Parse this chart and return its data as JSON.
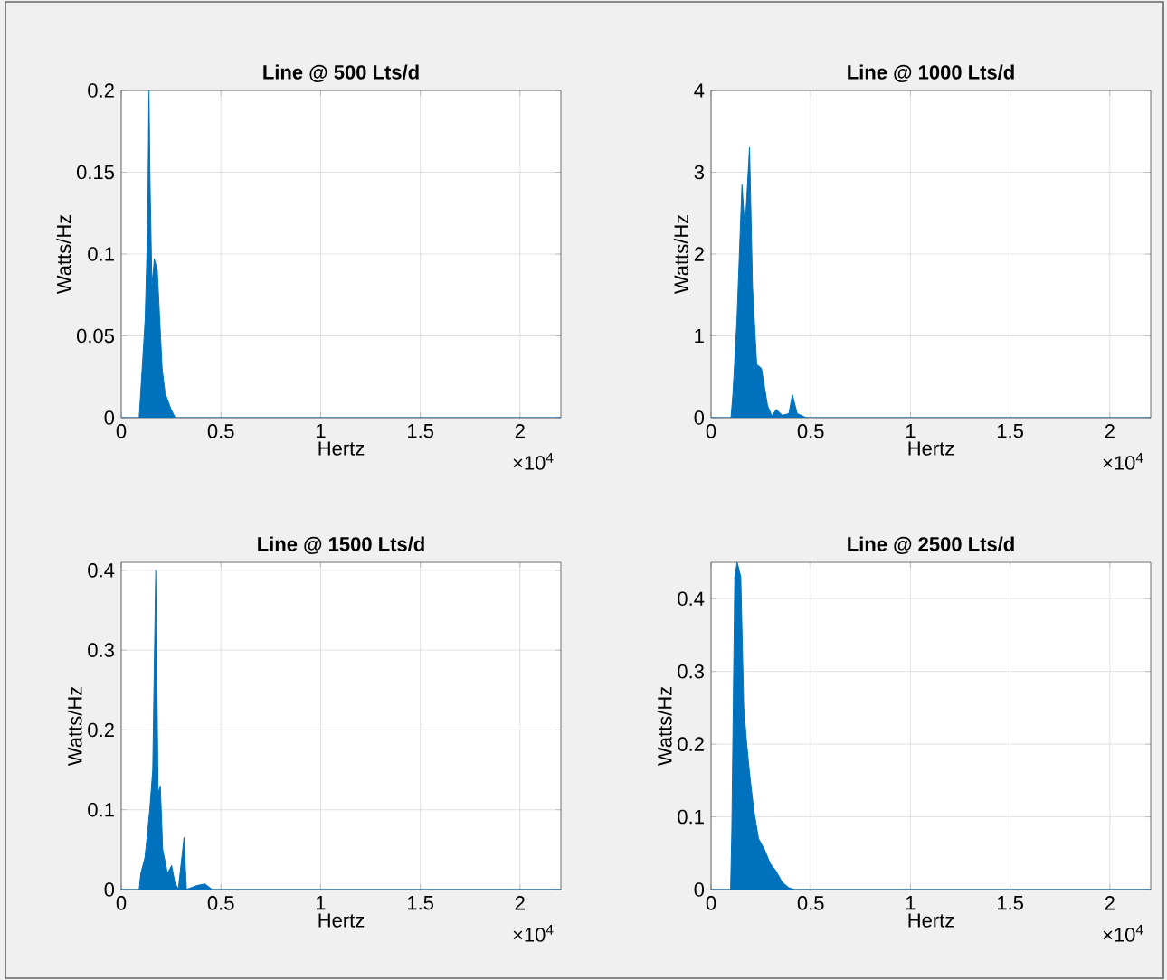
{
  "chart_data": [
    {
      "type": "area",
      "title": "Line @ 500 Lts/d",
      "xlabel": "Hertz",
      "ylabel": "Watts/Hz",
      "color": "#0072bd",
      "grid": true,
      "x": [
        0,
        0.09,
        0.105,
        0.12,
        0.133,
        0.139,
        0.145,
        0.154,
        0.166,
        0.181,
        0.193,
        0.205,
        0.22,
        0.25,
        0.271,
        2.205
      ],
      "values": [
        0,
        0,
        0.03,
        0.06,
        0.12,
        0.2,
        0.14,
        0.08,
        0.097,
        0.09,
        0.06,
        0.03,
        0.015,
        0.005,
        0,
        0
      ],
      "xlim": [
        0,
        2.205
      ],
      "ylim": [
        0,
        0.2
      ],
      "xticks": [
        0,
        0.5,
        1,
        1.5,
        2
      ],
      "yticks": [
        0,
        0.05,
        0.1,
        0.15,
        0.2
      ],
      "annotations": [
        "×10$^{4}$"
      ]
    },
    {
      "type": "area",
      "title": "Line @ 1000 Lts/d",
      "xlabel": "Hertz",
      "ylabel": "Watts/Hz",
      "color": "#0072bd",
      "grid": true,
      "x": [
        0,
        0.1,
        0.11,
        0.13,
        0.155,
        0.17,
        0.193,
        0.208,
        0.229,
        0.253,
        0.283,
        0.305,
        0.327,
        0.357,
        0.39,
        0.408,
        0.432,
        0.476,
        2.205
      ],
      "values": [
        0,
        0,
        0.3,
        1.2,
        2.85,
        2.3,
        3.3,
        1.6,
        0.65,
        0.6,
        0.15,
        0.02,
        0.1,
        0.03,
        0.05,
        0.28,
        0.05,
        0,
        0
      ],
      "xlim": [
        0,
        2.205
      ],
      "ylim": [
        0,
        4
      ],
      "xticks": [
        0,
        0.5,
        1,
        1.5,
        2
      ],
      "yticks": [
        0,
        1,
        2,
        3,
        4
      ],
      "annotations": [
        "×10$^{4}$"
      ]
    },
    {
      "type": "area",
      "title": "Line @ 1500 Lts/d",
      "xlabel": "Hertz",
      "ylabel": "Watts/Hz",
      "color": "#0072bd",
      "grid": true,
      "x": [
        0,
        0.09,
        0.098,
        0.119,
        0.143,
        0.158,
        0.173,
        0.185,
        0.196,
        0.208,
        0.232,
        0.253,
        0.268,
        0.286,
        0.315,
        0.327,
        0.381,
        0.42,
        0.455,
        2.205
      ],
      "values": [
        0,
        0,
        0.02,
        0.04,
        0.1,
        0.15,
        0.4,
        0.12,
        0.13,
        0.05,
        0.02,
        0.03,
        0.01,
        0,
        0.065,
        0,
        0.005,
        0.007,
        0,
        0
      ],
      "xlim": [
        0,
        2.205
      ],
      "ylim": [
        0,
        0.41
      ],
      "xticks": [
        0,
        0.5,
        1,
        1.5,
        2
      ],
      "yticks": [
        0,
        0.1,
        0.2,
        0.3,
        0.4
      ],
      "annotations": [
        "×10$^{4}$"
      ]
    },
    {
      "type": "area",
      "title": "Line @ 2500 Lts/d",
      "xlabel": "Hertz",
      "ylabel": "Watts/Hz",
      "color": "#0072bd",
      "grid": true,
      "x": [
        0,
        0.098,
        0.104,
        0.119,
        0.131,
        0.149,
        0.164,
        0.179,
        0.193,
        0.214,
        0.238,
        0.268,
        0.298,
        0.327,
        0.357,
        0.387,
        0.417,
        2.205
      ],
      "values": [
        0,
        0,
        0.08,
        0.43,
        0.45,
        0.43,
        0.25,
        0.2,
        0.16,
        0.11,
        0.07,
        0.055,
        0.035,
        0.025,
        0.01,
        0.003,
        0,
        0
      ],
      "xlim": [
        0,
        2.205
      ],
      "ylim": [
        0,
        0.45
      ],
      "xticks": [
        0,
        0.5,
        1,
        1.5,
        2
      ],
      "yticks": [
        0,
        0.1,
        0.2,
        0.3,
        0.4
      ],
      "annotations": [
        "×10$^{4}$"
      ]
    }
  ]
}
